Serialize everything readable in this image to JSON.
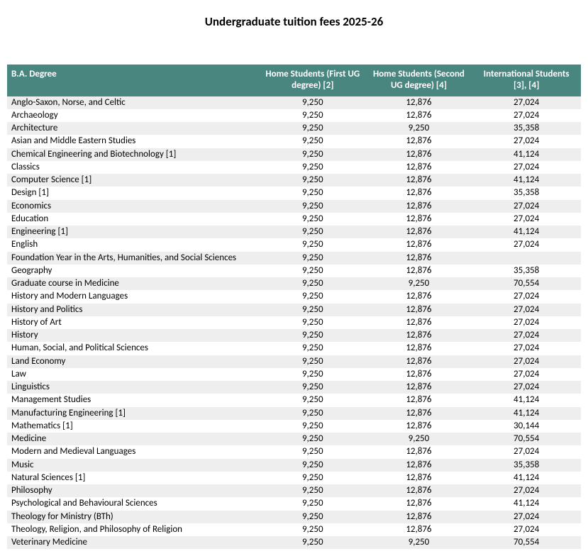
{
  "title": "Undergraduate tuition fees 2025-26",
  "tuition_table": {
    "type": "table",
    "header_bg": "#4a8680",
    "header_fg": "#ffffff",
    "row_stripe_even": "#eeeeee",
    "row_stripe_odd": "#ffffff",
    "font_family": "Calibri",
    "title_fontsize": 17,
    "body_fontsize": 13,
    "columns": [
      {
        "label": "B.A. Degree",
        "align": "left"
      },
      {
        "label": "Home Students (First UG degree) [2]",
        "align": "center"
      },
      {
        "label": "Home Students (Second UG degree) [4]",
        "align": "center"
      },
      {
        "label": "International Students [3], [4]",
        "align": "center"
      }
    ],
    "rows": [
      {
        "degree": "Anglo-Saxon, Norse, and Celtic",
        "home_first": "9,250",
        "home_second": "12,876",
        "intl": "27,024"
      },
      {
        "degree": "Archaeology",
        "home_first": "9,250",
        "home_second": "12,876",
        "intl": "27,024"
      },
      {
        "degree": "Architecture",
        "home_first": "9,250",
        "home_second": "9,250",
        "intl": "35,358"
      },
      {
        "degree": "Asian and Middle Eastern Studies",
        "home_first": "9,250",
        "home_second": "12,876",
        "intl": "27,024"
      },
      {
        "degree": "Chemical Engineering and Biotechnology [1]",
        "home_first": "9,250",
        "home_second": "12,876",
        "intl": "41,124"
      },
      {
        "degree": "Classics",
        "home_first": "9,250",
        "home_second": "12,876",
        "intl": "27,024"
      },
      {
        "degree": "Computer Science [1]",
        "home_first": "9,250",
        "home_second": "12,876",
        "intl": "41,124"
      },
      {
        "degree": "Design [1]",
        "home_first": "9,250",
        "home_second": "12,876",
        "intl": "35,358"
      },
      {
        "degree": "Economics",
        "home_first": "9,250",
        "home_second": "12,876",
        "intl": "27,024"
      },
      {
        "degree": "Education",
        "home_first": "9,250",
        "home_second": "12,876",
        "intl": "27,024"
      },
      {
        "degree": "Engineering [1]",
        "home_first": "9,250",
        "home_second": "12,876",
        "intl": "41,124"
      },
      {
        "degree": "English",
        "home_first": "9,250",
        "home_second": "12,876",
        "intl": "27,024"
      },
      {
        "degree": "Foundation Year in the Arts, Humanities, and Social Sciences",
        "home_first": "9,250",
        "home_second": "12,876",
        "intl": ""
      },
      {
        "degree": "Geography",
        "home_first": "9,250",
        "home_second": "12,876",
        "intl": "35,358"
      },
      {
        "degree": "Graduate course in Medicine",
        "home_first": "9,250",
        "home_second": "9,250",
        "intl": "70,554"
      },
      {
        "degree": "History and Modern Languages",
        "home_first": "9,250",
        "home_second": "12,876",
        "intl": "27,024"
      },
      {
        "degree": "History and Politics",
        "home_first": "9,250",
        "home_second": "12,876",
        "intl": "27,024"
      },
      {
        "degree": "History of Art",
        "home_first": "9,250",
        "home_second": "12,876",
        "intl": "27,024"
      },
      {
        "degree": "History",
        "home_first": "9,250",
        "home_second": "12,876",
        "intl": "27,024"
      },
      {
        "degree": "Human, Social, and Political Sciences",
        "home_first": "9,250",
        "home_second": "12,876",
        "intl": "27,024"
      },
      {
        "degree": "Land Economy",
        "home_first": "9,250",
        "home_second": "12,876",
        "intl": "27,024"
      },
      {
        "degree": "Law",
        "home_first": "9,250",
        "home_second": "12,876",
        "intl": "27,024"
      },
      {
        "degree": "Linguistics",
        "home_first": "9,250",
        "home_second": "12,876",
        "intl": "27,024"
      },
      {
        "degree": "Management Studies",
        "home_first": "9,250",
        "home_second": "12,876",
        "intl": "41,124"
      },
      {
        "degree": "Manufacturing Engineering [1]",
        "home_first": "9,250",
        "home_second": "12,876",
        "intl": "41,124"
      },
      {
        "degree": "Mathematics [1]",
        "home_first": "9,250",
        "home_second": "12,876",
        "intl": "30,144"
      },
      {
        "degree": "Medicine",
        "home_first": "9,250",
        "home_second": "9,250",
        "intl": "70,554"
      },
      {
        "degree": "Modern and Medieval Languages",
        "home_first": "9,250",
        "home_second": "12,876",
        "intl": "27,024"
      },
      {
        "degree": "Music",
        "home_first": "9,250",
        "home_second": "12,876",
        "intl": "35,358"
      },
      {
        "degree": "Natural Sciences [1]",
        "home_first": "9,250",
        "home_second": "12,876",
        "intl": "41,124"
      },
      {
        "degree": "Philosophy",
        "home_first": "9,250",
        "home_second": "12,876",
        "intl": "27,024"
      },
      {
        "degree": "Psychological and Behavioural Sciences",
        "home_first": "9,250",
        "home_second": "12,876",
        "intl": "41,124"
      },
      {
        "degree": "Theology for Ministry (BTh)",
        "home_first": "9,250",
        "home_second": "12,876",
        "intl": "27,024"
      },
      {
        "degree": "Theology, Religion, and Philosophy of Religion",
        "home_first": "9,250",
        "home_second": "12,876",
        "intl": "27,024"
      },
      {
        "degree": "Veterinary Medicine",
        "home_first": "9,250",
        "home_second": "9,250",
        "intl": "70,554"
      }
    ]
  }
}
